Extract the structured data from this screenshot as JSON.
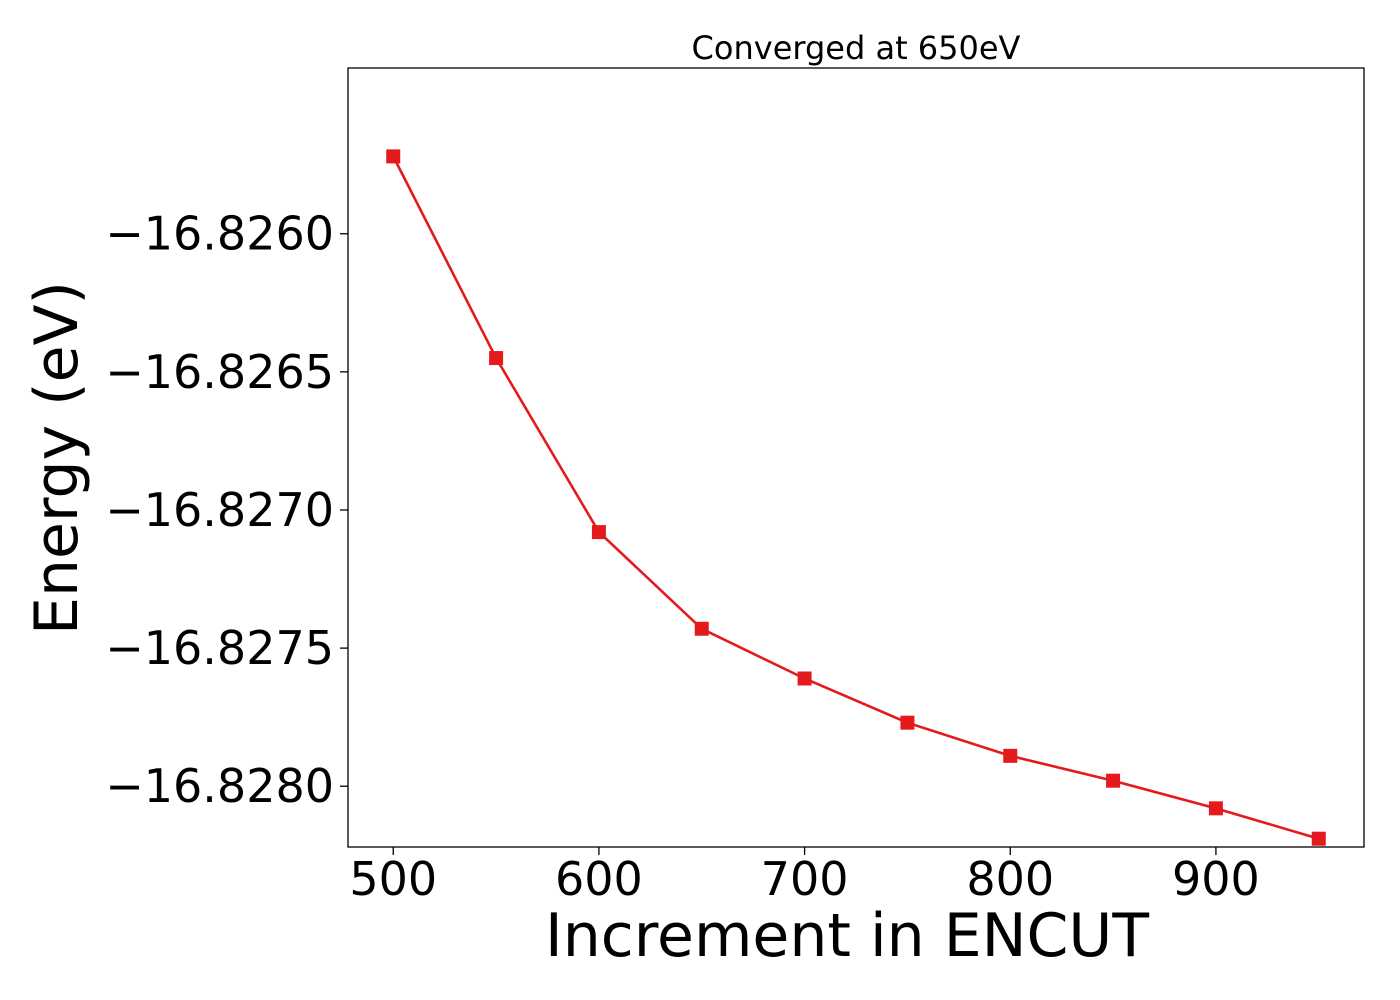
{
  "chart_data": {
    "type": "line",
    "title": "Converged at 650eV",
    "xlabel": "Increment in ENCUT",
    "ylabel": "Energy (eV)",
    "x": [
      500,
      550,
      600,
      650,
      700,
      750,
      800,
      850,
      900,
      950
    ],
    "series": [
      {
        "values": [
          -16.82572,
          -16.82645,
          -16.82708,
          -16.82743,
          -16.82761,
          -16.82777,
          -16.82789,
          -16.82798,
          -16.82808,
          -16.82819
        ],
        "color": "#e41a1c",
        "marker": "square"
      }
    ],
    "xticks": [
      500,
      600,
      700,
      800,
      900
    ],
    "xtick_labels": [
      "500",
      "600",
      "700",
      "800",
      "900"
    ],
    "yticks": [
      -16.826,
      -16.8265,
      -16.827,
      -16.8275,
      -16.828
    ],
    "ytick_labels": [
      "−16.8260",
      "−16.8265",
      "−16.8270",
      "−16.8275",
      "−16.8280"
    ],
    "xlim": [
      478,
      972
    ],
    "ylim": [
      -16.82822,
      -16.8254
    ],
    "grid": false,
    "legend": "none"
  }
}
